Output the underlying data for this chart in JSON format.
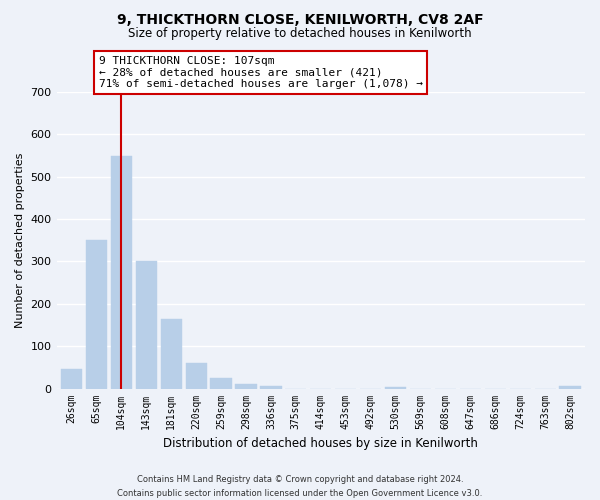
{
  "title": "9, THICKTHORN CLOSE, KENILWORTH, CV8 2AF",
  "subtitle": "Size of property relative to detached houses in Kenilworth",
  "xlabel": "Distribution of detached houses by size in Kenilworth",
  "ylabel": "Number of detached properties",
  "bar_labels": [
    "26sqm",
    "65sqm",
    "104sqm",
    "143sqm",
    "181sqm",
    "220sqm",
    "259sqm",
    "298sqm",
    "336sqm",
    "375sqm",
    "414sqm",
    "453sqm",
    "492sqm",
    "530sqm",
    "569sqm",
    "608sqm",
    "647sqm",
    "686sqm",
    "724sqm",
    "763sqm",
    "802sqm"
  ],
  "bar_values": [
    45,
    350,
    550,
    300,
    165,
    60,
    25,
    10,
    5,
    0,
    0,
    0,
    0,
    3,
    0,
    0,
    0,
    0,
    0,
    0,
    5
  ],
  "bar_color": "#b8cfe8",
  "vline_color": "#cc0000",
  "vline_x": 2,
  "ylim": [
    0,
    700
  ],
  "yticks": [
    0,
    100,
    200,
    300,
    400,
    500,
    600,
    700
  ],
  "annotation_line1": "9 THICKTHORN CLOSE: 107sqm",
  "annotation_line2": "← 28% of detached houses are smaller (421)",
  "annotation_line3": "71% of semi-detached houses are larger (1,078) →",
  "annotation_box_color": "#ffffff",
  "annotation_box_edgecolor": "#cc0000",
  "footer_line1": "Contains HM Land Registry data © Crown copyright and database right 2024.",
  "footer_line2": "Contains public sector information licensed under the Open Government Licence v3.0.",
  "background_color": "#eef2f9",
  "grid_color": "#ffffff",
  "figsize": [
    6.0,
    5.0
  ],
  "dpi": 100
}
